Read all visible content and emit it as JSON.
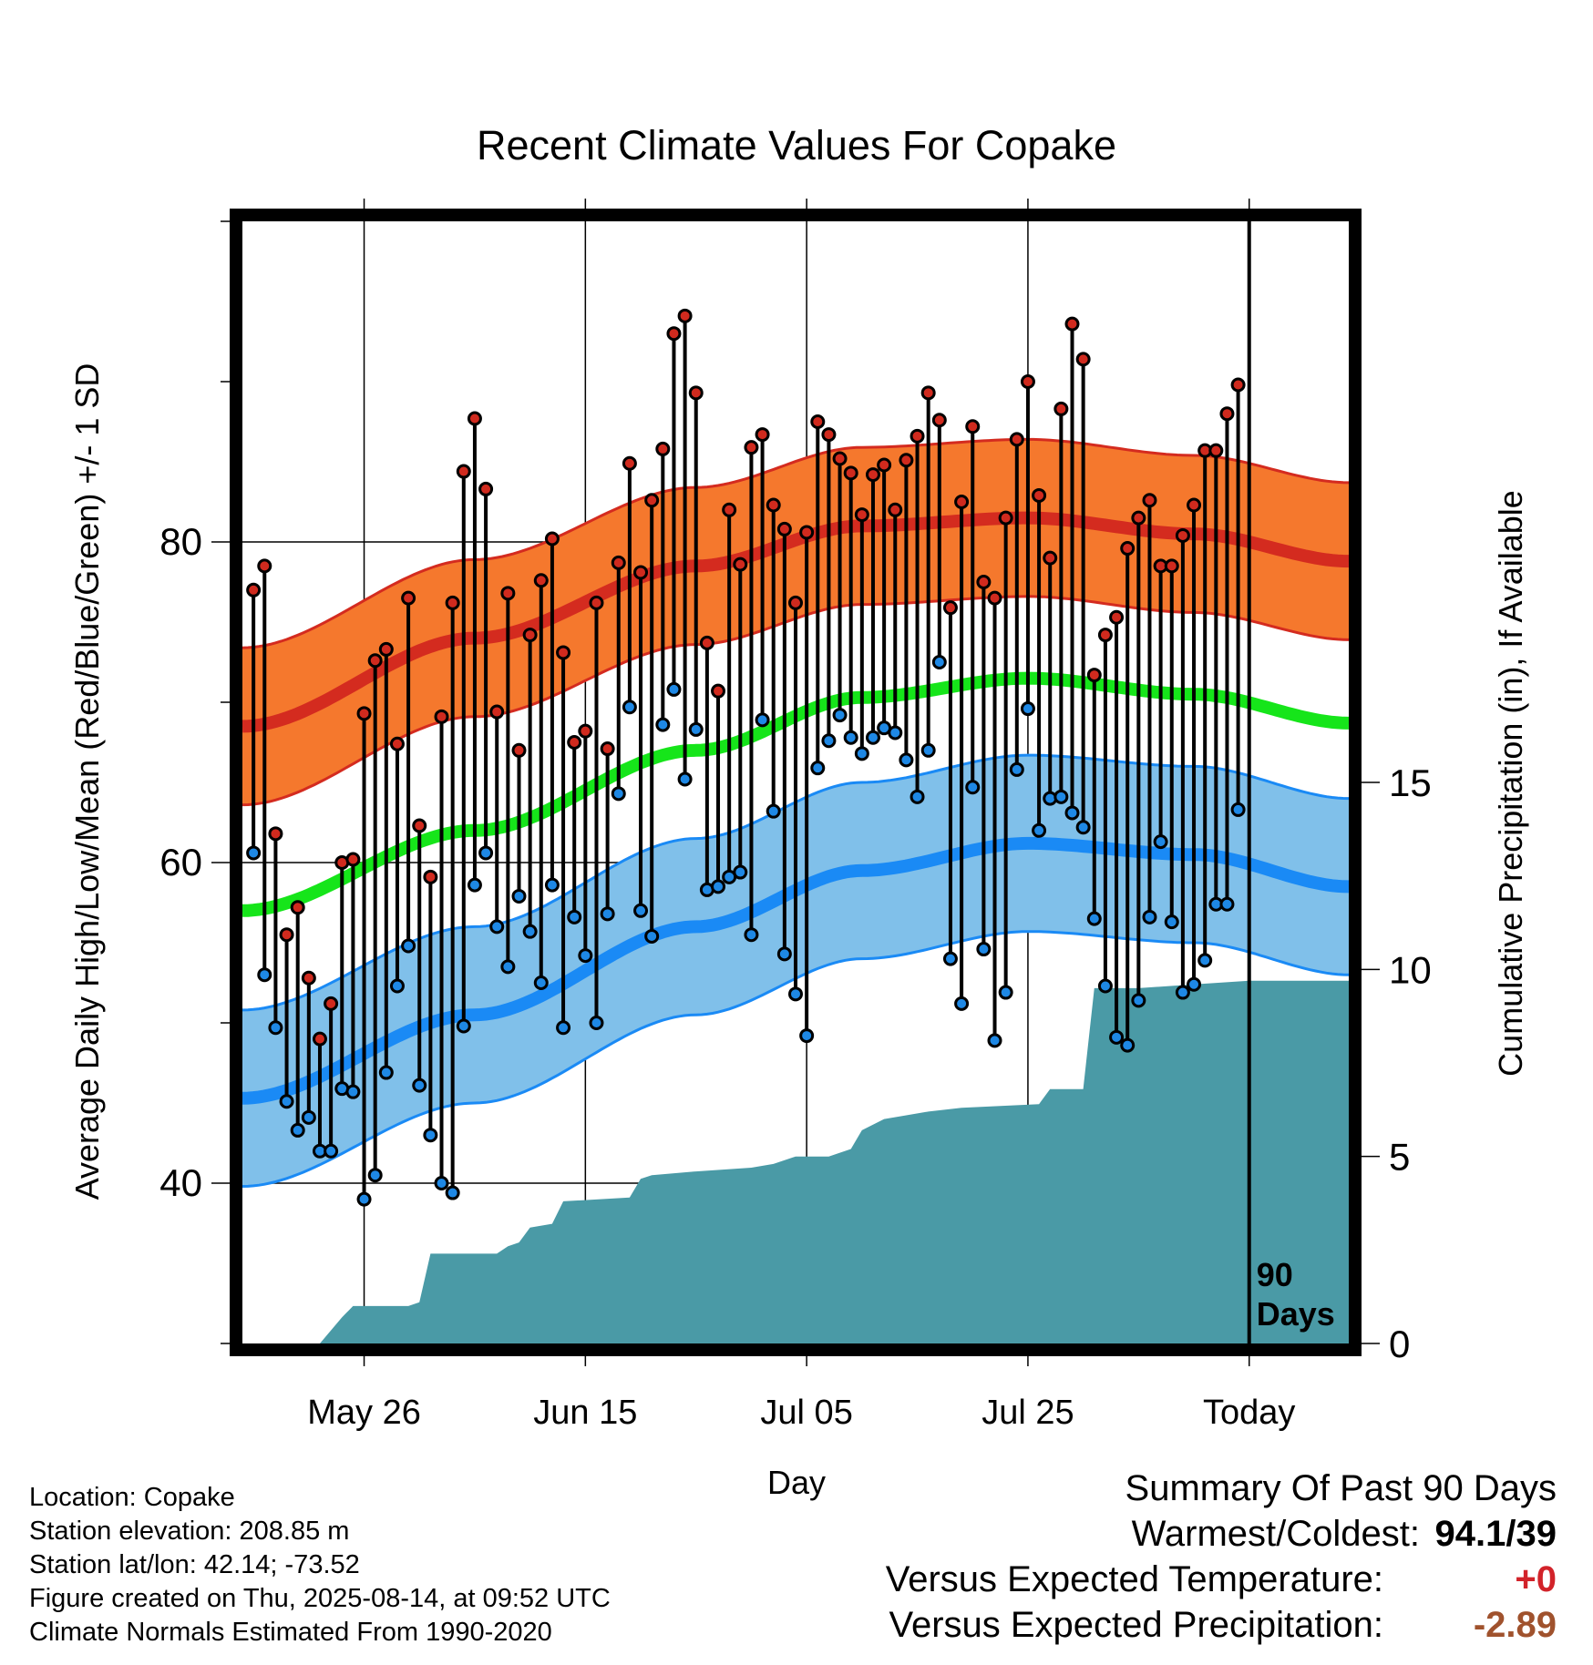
{
  "chart_data": {
    "type": "line",
    "title": "Recent Climate Values For Copake",
    "xlabel": "Day",
    "ylabel": "Average Daily High/Low/Mean (Red/Blue/Green) +/- 1 SD",
    "y2label": "Cumulative Precipitation (in), If Available",
    "x_tick_labels": [
      "May 26",
      "Jun 15",
      "Jul 05",
      "Jul 25",
      "Today"
    ],
    "x_tick_days": [
      -80,
      -60,
      -40,
      -20,
      0
    ],
    "x_range_days": [
      -91,
      9
    ],
    "ylim": [
      30,
      100
    ],
    "y_ticks": [
      40,
      60,
      80
    ],
    "y2lim": [
      0,
      30
    ],
    "y2_ticks": [
      0,
      5,
      10,
      15
    ],
    "grid": true,
    "today_marker": "90\nDays",
    "normals": {
      "high_mean": [
        [
          -91,
          68.5
        ],
        [
          -70,
          74
        ],
        [
          -50,
          78.5
        ],
        [
          -35,
          81
        ],
        [
          -20,
          81.5
        ],
        [
          -5,
          80.5
        ],
        [
          9,
          78.8
        ]
      ],
      "high_sd": 4.9,
      "mean": [
        [
          -91,
          57
        ],
        [
          -70,
          62
        ],
        [
          -50,
          67
        ],
        [
          -35,
          70.3
        ],
        [
          -20,
          71.5
        ],
        [
          -5,
          70.5
        ],
        [
          9,
          68.7
        ]
      ],
      "low_mean": [
        [
          -91,
          45.3
        ],
        [
          -70,
          50.5
        ],
        [
          -50,
          56
        ],
        [
          -35,
          59.5
        ],
        [
          -20,
          61.2
        ],
        [
          -5,
          60.5
        ],
        [
          9,
          58.5
        ]
      ],
      "low_sd": 5.5
    },
    "series": [
      {
        "name": "",
        "values": [
          77,
          78.5,
          61.8,
          55.5,
          57.2,
          52.8,
          49,
          51.2,
          60,
          60.2,
          69.3,
          72.6,
          73.3,
          67.4,
          76.5,
          62.3,
          59.1,
          69.1,
          76.2,
          84.4,
          87.7,
          83.3,
          69.4,
          76.8,
          67,
          74.2,
          77.6,
          80.2,
          73.1,
          67.5,
          68.2,
          76.2,
          67.1,
          78.7,
          84.9,
          78.1,
          82.6,
          85.8,
          93,
          94.1,
          89.3,
          73.7,
          70.7,
          82,
          78.6,
          85.9,
          86.7,
          82.3,
          80.8,
          76.2,
          80.6,
          87.5,
          86.7,
          85.2,
          84.3,
          81.7,
          84.2,
          84.8,
          82,
          85.1,
          86.6,
          89.3,
          87.6,
          75.9,
          82.5,
          87.2,
          77.5,
          76.5,
          81.5,
          86.4,
          90,
          82.9,
          79,
          88.3,
          93.6,
          91.4,
          71.7,
          74.2,
          75.3,
          79.6,
          81.5,
          82.6,
          78.5,
          78.5,
          80.4,
          82.3,
          85.7,
          85.7,
          88,
          89.8
        ]
      },
      {
        "name": "",
        "values": [
          60.6,
          53,
          49.7,
          45.1,
          43.3,
          44.1,
          42,
          42,
          45.9,
          45.7,
          39,
          40.5,
          46.9,
          52.3,
          54.8,
          46.1,
          43,
          40,
          39.4,
          49.8,
          58.6,
          60.6,
          56,
          53.5,
          57.9,
          55.7,
          52.5,
          58.6,
          49.7,
          56.6,
          54.2,
          50,
          56.8,
          64.3,
          69.7,
          57,
          55.4,
          68.6,
          70.8,
          65.2,
          68.3,
          58.3,
          58.5,
          59.1,
          59.4,
          55.5,
          68.9,
          63.2,
          54.3,
          51.8,
          49.2,
          65.9,
          67.6,
          69.2,
          67.8,
          66.8,
          67.8,
          68.4,
          68.1,
          66.4,
          64.1,
          67,
          72.5,
          54,
          51.2,
          64.7,
          54.6,
          48.9,
          51.9,
          65.8,
          69.6,
          62,
          64,
          64.1,
          63.1,
          62.2,
          56.5,
          52.3,
          49.1,
          48.6,
          51.4,
          56.6,
          61.3,
          56.3,
          51.9,
          52.4,
          53.9,
          57.4,
          57.4,
          63.3
        ]
      },
      {
        "name": "",
        "points": [
          [
            -91,
            0
          ],
          [
            -84,
            0
          ],
          [
            -82,
            0.7
          ],
          [
            -81,
            1
          ],
          [
            -76,
            1
          ],
          [
            -75,
            1.1
          ],
          [
            -74,
            2.4
          ],
          [
            -73,
            2.4
          ],
          [
            -68,
            2.4
          ],
          [
            -67,
            2.6
          ],
          [
            -66,
            2.7
          ],
          [
            -65,
            3.1
          ],
          [
            -63,
            3.2
          ],
          [
            -62,
            3.8
          ],
          [
            -56,
            3.9
          ],
          [
            -55,
            4.4
          ],
          [
            -54,
            4.5
          ],
          [
            -50,
            4.6
          ],
          [
            -45,
            4.7
          ],
          [
            -43,
            4.8
          ],
          [
            -41,
            5.0
          ],
          [
            -38,
            5.0
          ],
          [
            -36,
            5.2
          ],
          [
            -35,
            5.7
          ],
          [
            -33,
            6.0
          ],
          [
            -31,
            6.1
          ],
          [
            -29,
            6.2
          ],
          [
            -26,
            6.3
          ],
          [
            -19,
            6.4
          ],
          [
            -18,
            6.8
          ],
          [
            -15,
            6.8
          ],
          [
            -14,
            9.5
          ],
          [
            -10,
            9.5
          ],
          [
            -5,
            9.6
          ],
          [
            0,
            9.7
          ],
          [
            9,
            9.7
          ]
        ]
      }
    ]
  },
  "colors": {
    "high_band": "#f5782d",
    "high_line": "#d42b1f",
    "mean_line": "#16e51a",
    "low_band": "#80c0ea",
    "low_line": "#1a8af5",
    "high_dot": "#d02a1e",
    "low_dot": "#1e88e5",
    "precip": "#4a9aa6"
  },
  "info": {
    "location": "Location: Copake",
    "elevation": "Station elevation: 208.85 m",
    "latlon": "Station lat/lon: 42.14; -73.52",
    "created": "Figure created on Thu, 2025-08-14, at 09:52 UTC",
    "normals": "Climate Normals Estimated From 1990-2020"
  },
  "summary": {
    "title": "Summary Of Past 90 Days",
    "warm_cold_label": "Warmest/Coldest:",
    "warm_cold_value": "94.1/39",
    "temp_label": "Versus Expected Temperature:",
    "temp_value": "+0",
    "temp_color": "#d2232a",
    "precip_label": "Versus Expected Precipitation:",
    "precip_value": "-2.89",
    "precip_color": "#a0522d"
  }
}
